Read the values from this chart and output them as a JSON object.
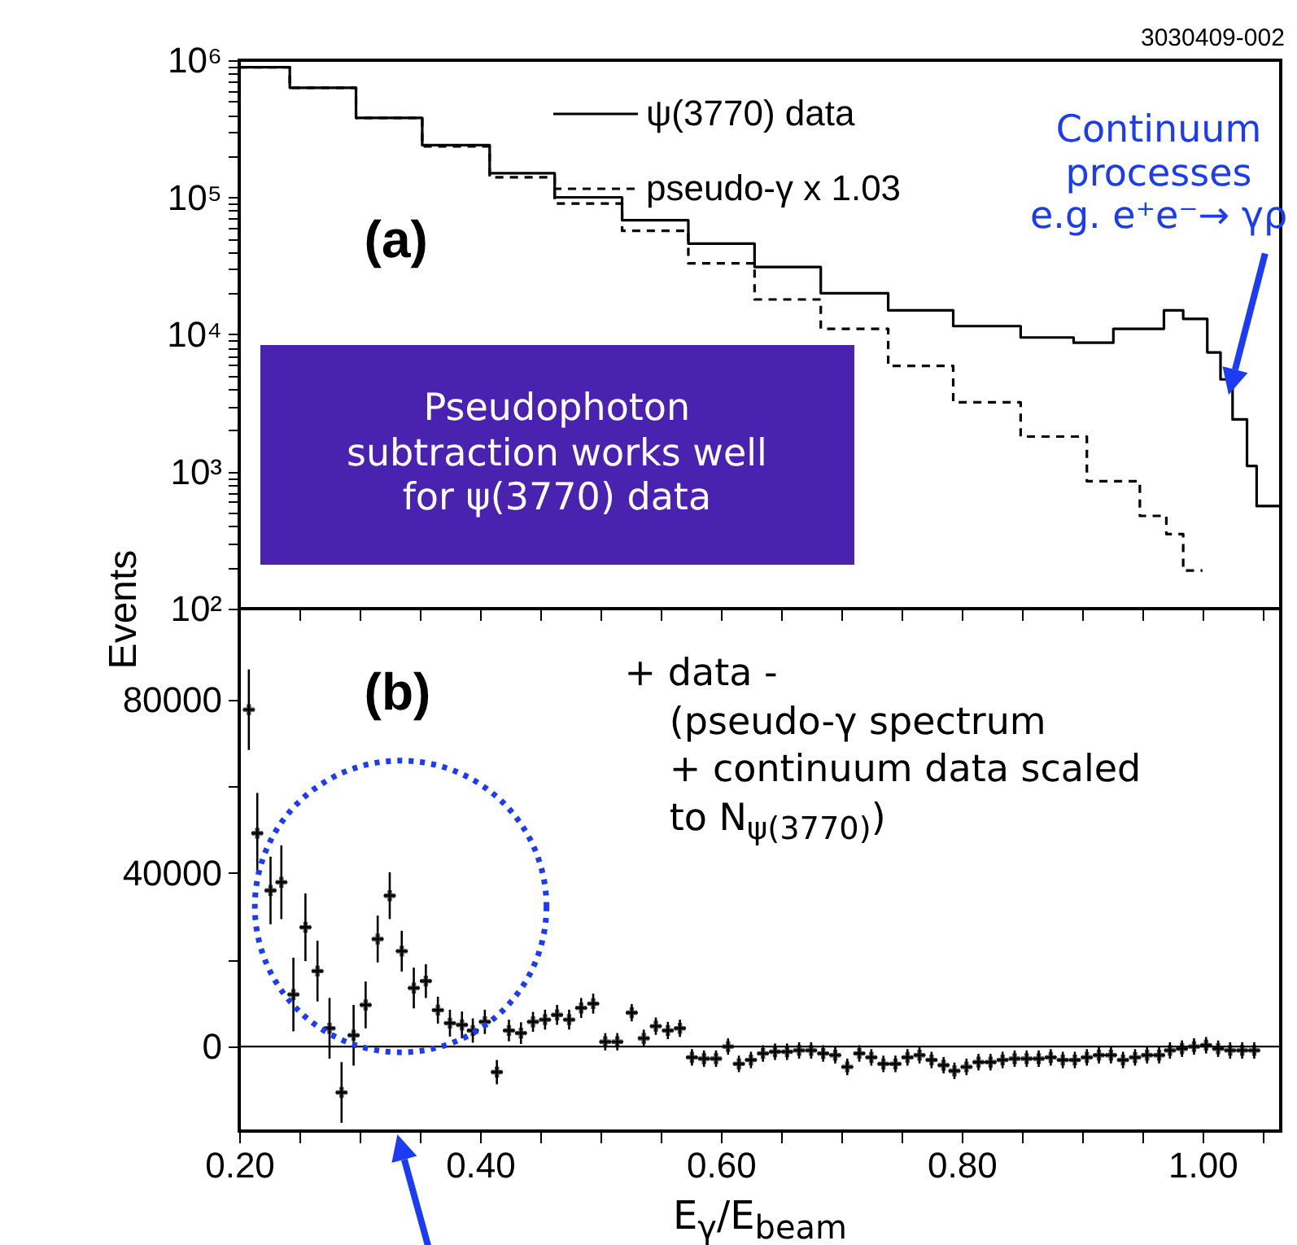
{
  "chart_data": [
    {
      "type": "step",
      "ylabel": "Events",
      "log": "y",
      "xlim": [
        0.2,
        1.065
      ],
      "ylim": [
        100,
        1000000
      ],
      "xticks": [
        {
          "value": 0.2,
          "label": null
        },
        {
          "value": 0.25,
          "label": null
        },
        {
          "value": 0.3,
          "label": null
        },
        {
          "value": 0.35,
          "label": null
        },
        {
          "value": 0.4,
          "label": null
        },
        {
          "value": 0.45,
          "label": null
        },
        {
          "value": 0.5,
          "label": null
        },
        {
          "value": 0.55,
          "label": null
        },
        {
          "value": 0.6,
          "label": null
        },
        {
          "value": 0.65,
          "label": null
        },
        {
          "value": 0.7,
          "label": null
        },
        {
          "value": 0.75,
          "label": null
        },
        {
          "value": 0.8,
          "label": null
        },
        {
          "value": 0.85,
          "label": null
        },
        {
          "value": 0.9,
          "label": null
        },
        {
          "value": 0.95,
          "label": null
        },
        {
          "value": 1.0,
          "label": null
        },
        {
          "value": 1.05,
          "label": null
        }
      ],
      "yticks": [
        {
          "value": 100,
          "label": "10²"
        },
        {
          "value": 200,
          "label": null
        },
        {
          "value": 300,
          "label": null
        },
        {
          "value": 400,
          "label": null
        },
        {
          "value": 500,
          "label": null
        },
        {
          "value": 600,
          "label": null
        },
        {
          "value": 700,
          "label": null
        },
        {
          "value": 800,
          "label": null
        },
        {
          "value": 900,
          "label": null
        },
        {
          "value": 1000,
          "label": "10³"
        },
        {
          "value": 2000,
          "label": null
        },
        {
          "value": 3000,
          "label": null
        },
        {
          "value": 4000,
          "label": null
        },
        {
          "value": 5000,
          "label": null
        },
        {
          "value": 6000,
          "label": null
        },
        {
          "value": 7000,
          "label": null
        },
        {
          "value": 8000,
          "label": null
        },
        {
          "value": 9000,
          "label": null
        },
        {
          "value": 10000,
          "label": "10⁴"
        },
        {
          "value": 20000,
          "label": null
        },
        {
          "value": 30000,
          "label": null
        },
        {
          "value": 40000,
          "label": null
        },
        {
          "value": 50000,
          "label": null
        },
        {
          "value": 60000,
          "label": null
        },
        {
          "value": 70000,
          "label": null
        },
        {
          "value": 80000,
          "label": null
        },
        {
          "value": 90000,
          "label": null
        },
        {
          "value": 100000,
          "label": "10⁵"
        },
        {
          "value": 200000,
          "label": null
        },
        {
          "value": 300000,
          "label": null
        },
        {
          "value": 400000,
          "label": null
        },
        {
          "value": 500000,
          "label": null
        },
        {
          "value": 600000,
          "label": null
        },
        {
          "value": 700000,
          "label": null
        },
        {
          "value": 800000,
          "label": null
        },
        {
          "value": 900000,
          "label": null
        },
        {
          "value": 1000000,
          "label": "10⁶"
        }
      ],
      "tick_labels": "y",
      "legend": "top",
      "series": [
        {
          "name": "ψ(3770) data",
          "color": "#000000",
          "line_style": "solid",
          "x": [
            0.2,
            0.242,
            0.297,
            0.352,
            0.408,
            0.462,
            0.518,
            0.573,
            0.628,
            0.683,
            0.739,
            0.793,
            0.849,
            0.893,
            0.926,
            0.968,
            0.984,
            1.004,
            1.015,
            1.025,
            1.037,
            1.045,
            1.065
          ],
          "values": [
            890000,
            630000,
            380000,
            240000,
            150000,
            100000,
            68000,
            46000,
            31000,
            20000,
            15000,
            11500,
            9500,
            8700,
            11000,
            15000,
            13000,
            7400,
            4700,
            2400,
            1100,
            560,
            560
          ]
        },
        {
          "name": "pseudo-γ x 1.03",
          "color": "#000000",
          "line_style": "dashed",
          "x": [
            0.2,
            0.242,
            0.297,
            0.352,
            0.408,
            0.462,
            0.518,
            0.573,
            0.628,
            0.683,
            0.739,
            0.793,
            0.849,
            0.904,
            0.948,
            0.97,
            0.984,
            1.0
          ],
          "values": [
            890000,
            630000,
            380000,
            235000,
            140000,
            90000,
            57000,
            33000,
            18000,
            11000,
            5900,
            3200,
            1800,
            850,
            475,
            350,
            190,
            190
          ]
        }
      ],
      "annotations": [
        "(a)",
        "3030409-002",
        "Continuum\nprocesses\ne.g. e⁺e⁻→ γρ",
        "Pseudophoton\nsubtraction works well\nfor ψ(3770) data"
      ]
    },
    {
      "type": "scatter",
      "marker": "cross",
      "xlabel": "E$_{γ}$/E$_{beam}$",
      "xlim": [
        0.2,
        1.065
      ],
      "ylim": [
        -19500,
        101000
      ],
      "xticks": [
        {
          "value": 0.2,
          "label": "0.20"
        },
        {
          "value": 0.25,
          "label": null
        },
        {
          "value": 0.3,
          "label": null
        },
        {
          "value": 0.35,
          "label": null
        },
        {
          "value": 0.4,
          "label": "0.40"
        },
        {
          "value": 0.45,
          "label": null
        },
        {
          "value": 0.5,
          "label": null
        },
        {
          "value": 0.55,
          "label": null
        },
        {
          "value": 0.6,
          "label": "0.60"
        },
        {
          "value": 0.65,
          "label": null
        },
        {
          "value": 0.7,
          "label": null
        },
        {
          "value": 0.75,
          "label": null
        },
        {
          "value": 0.8,
          "label": "0.80"
        },
        {
          "value": 0.85,
          "label": null
        },
        {
          "value": 0.9,
          "label": null
        },
        {
          "value": 0.95,
          "label": null
        },
        {
          "value": 1.0,
          "label": "1.00"
        },
        {
          "value": 1.05,
          "label": null
        }
      ],
      "yticks": [
        0,
        {
          "value": 20000,
          "label": null
        },
        40000,
        {
          "value": 60000,
          "label": null
        },
        80000
      ],
      "ref_lines": [
        {
          "axis": "y",
          "value": 0,
          "color": "#000000"
        }
      ],
      "series": [
        {
          "color": "#000000",
          "x": [
            0.208,
            0.215,
            0.226,
            0.235,
            0.245,
            0.255,
            0.265,
            0.275,
            0.285,
            0.295,
            0.305,
            0.315,
            0.325,
            0.335,
            0.345,
            0.355,
            0.365,
            0.375,
            0.385,
            0.394,
            0.404,
            0.414,
            0.424,
            0.434,
            0.444,
            0.454,
            0.464,
            0.474,
            0.484,
            0.494,
            0.504,
            0.514,
            0.526,
            0.536,
            0.546,
            0.556,
            0.566,
            0.576,
            0.586,
            0.596,
            0.606,
            0.615,
            0.625,
            0.635,
            0.645,
            0.655,
            0.665,
            0.675,
            0.685,
            0.695,
            0.705,
            0.715,
            0.725,
            0.735,
            0.745,
            0.755,
            0.765,
            0.775,
            0.785,
            0.794,
            0.804,
            0.814,
            0.824,
            0.834,
            0.844,
            0.854,
            0.864,
            0.874,
            0.884,
            0.894,
            0.904,
            0.914,
            0.924,
            0.934,
            0.944,
            0.954,
            0.964,
            0.973,
            0.983,
            0.993,
            1.003,
            1.013,
            1.023,
            1.033,
            1.043
          ],
          "values": [
            77700,
            49200,
            36000,
            37900,
            12000,
            27500,
            17400,
            4200,
            -10600,
            2600,
            9600,
            24800,
            34800,
            22000,
            13500,
            15100,
            8400,
            5400,
            5000,
            3700,
            5700,
            -5900,
            3700,
            3100,
            5700,
            6200,
            7300,
            6200,
            8900,
            9900,
            1100,
            1100,
            7800,
            1900,
            4700,
            3700,
            4200,
            -2500,
            -2800,
            -2800,
            0,
            -4000,
            -3100,
            -1600,
            -1200,
            -1200,
            -900,
            -900,
            -1600,
            -2000,
            -4700,
            -1600,
            -2500,
            -4000,
            -4000,
            -2500,
            -2000,
            -3100,
            -4300,
            -5600,
            -4700,
            -3600,
            -3600,
            -3100,
            -2800,
            -2800,
            -2800,
            -2500,
            -3100,
            -3100,
            -2500,
            -2000,
            -2000,
            -3100,
            -2500,
            -2000,
            -2000,
            -900,
            -500,
            0,
            300,
            -500,
            -900,
            -900,
            -900
          ],
          "errors": [
            9300,
            9300,
            7800,
            8500,
            8500,
            7800,
            7000,
            7000,
            7000,
            7000,
            5400,
            5400,
            5400,
            4700,
            4700,
            3900,
            3100,
            3100,
            3100,
            2800,
            2800,
            2800,
            2500,
            2500,
            2300,
            2300,
            2300,
            2300,
            2300,
            2300,
            2000,
            2000,
            2000,
            2000,
            2000,
            2000,
            2000,
            1900,
            1900,
            1900,
            1900,
            1900,
            1900,
            1900,
            1900,
            1900,
            1900,
            1900,
            1900,
            1900,
            1900,
            1900,
            1900,
            1900,
            1900,
            1900,
            1900,
            1900,
            1900,
            1900,
            1900,
            1900,
            1900,
            1900,
            1900,
            1900,
            1900,
            1900,
            1900,
            1900,
            1900,
            1900,
            1900,
            1900,
            1900,
            1900,
            1900,
            1900,
            1900,
            1900,
            1900,
            1900,
            1900,
            1900,
            1900
          ],
          "xerrors": [
            0.005,
            0.005,
            0.005,
            0.005,
            0.005,
            0.005,
            0.005,
            0.005,
            0.005,
            0.005,
            0.005,
            0.005,
            0.005,
            0.005,
            0.005,
            0.005,
            0.005,
            0.005,
            0.005,
            0.005,
            0.005,
            0.005,
            0.005,
            0.005,
            0.005,
            0.005,
            0.005,
            0.005,
            0.005,
            0.005,
            0.005,
            0.005,
            0.005,
            0.005,
            0.005,
            0.005,
            0.005,
            0.005,
            0.005,
            0.005,
            0.005,
            0.005,
            0.005,
            0.005,
            0.005,
            0.005,
            0.005,
            0.005,
            0.005,
            0.005,
            0.005,
            0.005,
            0.005,
            0.005,
            0.005,
            0.005,
            0.005,
            0.005,
            0.005,
            0.005,
            0.005,
            0.005,
            0.005,
            0.005,
            0.005,
            0.005,
            0.005,
            0.005,
            0.005,
            0.005,
            0.005,
            0.005,
            0.005,
            0.005,
            0.005,
            0.005,
            0.005,
            0.005,
            0.005,
            0.005,
            0.005,
            0.005,
            0.005,
            0.005,
            0.005
          ]
        }
      ],
      "annotations": [
        "(b)",
        "+ data -\n(pseudo-γ spectrum\n+ continuum data scaled\nto N$_{ψ(3770)}$)"
      ]
    }
  ]
}
